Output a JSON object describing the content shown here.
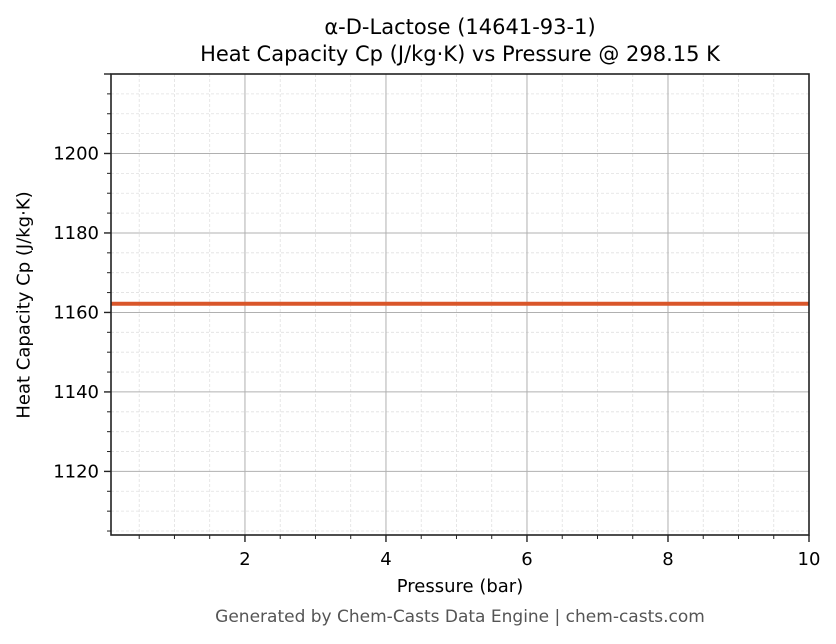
{
  "title": {
    "line1": "α-D-Lactose (14641-93-1)",
    "line2": "Heat Capacity Cp (J/kg·K) vs Pressure @ 298.15 K"
  },
  "axes": {
    "xlabel": "Pressure (bar)",
    "ylabel": "Heat Capacity Cp (J/kg·K)",
    "xticks": [
      "2",
      "4",
      "6",
      "8",
      "10"
    ],
    "yticks": [
      "1120",
      "1140",
      "1160",
      "1180",
      "1200"
    ]
  },
  "footer": "Generated by Chem-Casts Data Engine | chem-casts.com",
  "colors": {
    "line": "#d9562a",
    "major_grid": "#b0b0b0",
    "minor_grid": "#e0e0e0",
    "axis": "#222222"
  },
  "chart_data": {
    "type": "line",
    "title": "α-D-Lactose (14641-93-1) — Heat Capacity Cp (J/kg·K) vs Pressure @ 298.15 K",
    "xlabel": "Pressure (bar)",
    "ylabel": "Heat Capacity Cp (J/kg·K)",
    "xlim": [
      0.1,
      10
    ],
    "ylim": [
      1104,
      1220
    ],
    "x_ticks": [
      2,
      4,
      6,
      8,
      10
    ],
    "y_ticks": [
      1120,
      1140,
      1160,
      1180,
      1200
    ],
    "grid": true,
    "minor_grid": true,
    "legend": null,
    "series": [
      {
        "name": "Cp",
        "color": "#d9562a",
        "x": [
          0.1,
          1,
          2,
          3,
          4,
          5,
          6,
          7,
          8,
          9,
          10
        ],
        "values": [
          1162.2,
          1162.2,
          1162.2,
          1162.2,
          1162.2,
          1162.2,
          1162.2,
          1162.2,
          1162.2,
          1162.2,
          1162.2
        ]
      }
    ]
  }
}
